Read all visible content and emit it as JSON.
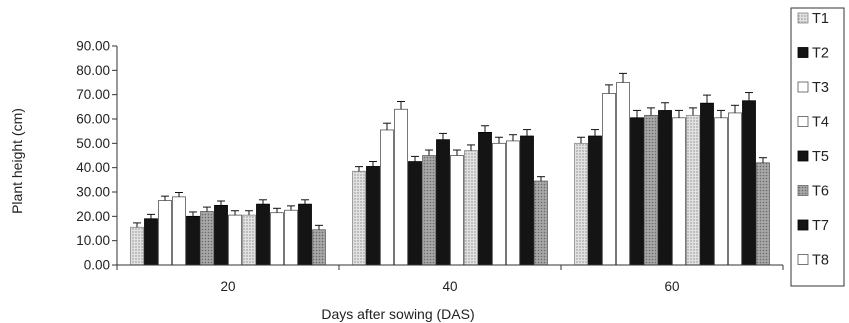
{
  "chart_data": {
    "type": "bar",
    "xlabel": "Days after sowing (DAS)",
    "ylabel": "Plant height (cm)",
    "ylim": [
      0,
      90
    ],
    "yticks": [
      "0.00",
      "10.00",
      "20.00",
      "30.00",
      "40.00",
      "50.00",
      "60.00",
      "70.00",
      "80.00",
      "90.00"
    ],
    "categories": [
      "20",
      "40",
      "60"
    ],
    "error_bars": true,
    "legend_position": "right",
    "series": [
      {
        "name": "T1",
        "values": [
          15.5,
          38.5,
          50.0
        ]
      },
      {
        "name": "T2",
        "values": [
          19.0,
          40.5,
          53.0
        ]
      },
      {
        "name": "T3",
        "values": [
          26.5,
          55.5,
          70.5
        ]
      },
      {
        "name": "T4",
        "values": [
          28.0,
          64.0,
          75.0
        ]
      },
      {
        "name": "T5",
        "values": [
          20.0,
          42.5,
          60.5
        ]
      },
      {
        "name": "T6",
        "values": [
          22.0,
          45.0,
          61.5
        ]
      },
      {
        "name": "T7",
        "values": [
          24.5,
          51.5,
          63.5
        ]
      },
      {
        "name": "T8",
        "values": [
          20.5,
          45.0,
          60.5
        ]
      }
    ],
    "series_b": [
      {
        "name": "T1",
        "values": [
          20.5,
          47.0,
          61.5
        ]
      },
      {
        "name": "T2",
        "values": [
          25.0,
          54.5,
          66.5
        ]
      },
      {
        "name": "T3",
        "values": [
          21.5,
          50.0,
          60.5
        ]
      },
      {
        "name": "T4",
        "values": [
          22.5,
          51.0,
          62.5
        ]
      },
      {
        "name": "T5",
        "values": [
          25.0,
          53.0,
          67.5
        ]
      },
      {
        "name": "T6",
        "values": [
          14.5,
          34.5,
          42.0
        ]
      }
    ]
  },
  "colors": {
    "dotted_fill": "#c8c8c8",
    "dark_fill": "#141414",
    "white_fill": "#ffffff",
    "grey_fill": "#9a9a9a"
  }
}
